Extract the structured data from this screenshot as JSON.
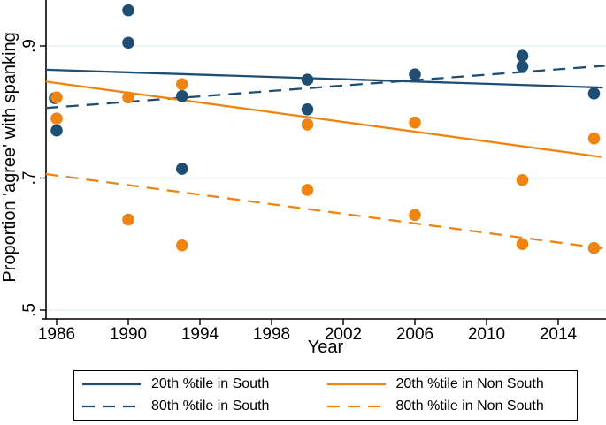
{
  "chart_data": {
    "type": "scatter",
    "title": "",
    "xlabel": "Year",
    "ylabel": "Proportion 'agree' with spanking",
    "x_ticks": [
      1986,
      1990,
      1994,
      1998,
      2002,
      2006,
      2010,
      2014
    ],
    "y_ticks": [
      0.5,
      0.7,
      0.9
    ],
    "y_tick_labels": [
      ".5",
      ".7",
      ".9"
    ],
    "x_range": [
      1985.2,
      2016.75
    ],
    "y_range": [
      0.487,
      0.97
    ],
    "grid": "horizontal-only",
    "legend_position": "bottom-box",
    "colors": {
      "south": "#1f4e74",
      "non_south": "#ee8512",
      "gridline": "#e7f0f2",
      "axis": "#000000"
    },
    "scatter_groups": [
      {
        "name": "South (navy dots)",
        "color_key": "south",
        "points": [
          [
            1985.9,
            0.821
          ],
          [
            1986,
            0.772
          ],
          [
            1990,
            0.954
          ],
          [
            1990,
            0.905
          ],
          [
            1993,
            0.824
          ],
          [
            1993,
            0.714
          ],
          [
            2000,
            0.849
          ],
          [
            2000,
            0.804
          ],
          [
            2006,
            0.857
          ],
          [
            2012,
            0.885
          ],
          [
            2012,
            0.869
          ],
          [
            2016,
            0.828
          ]
        ]
      },
      {
        "name": "Non South (orange dots)",
        "color_key": "non_south",
        "points": [
          [
            1986,
            0.822
          ],
          [
            1986,
            0.79
          ],
          [
            1990,
            0.822
          ],
          [
            1990,
            0.637
          ],
          [
            1993,
            0.842
          ],
          [
            1993,
            0.598
          ],
          [
            2000,
            0.781
          ],
          [
            2000,
            0.682
          ],
          [
            2006,
            0.784
          ],
          [
            2006,
            0.644
          ],
          [
            2012,
            0.697
          ],
          [
            2012,
            0.6
          ],
          [
            2016,
            0.76
          ],
          [
            2016,
            0.594
          ]
        ]
      }
    ],
    "fit_lines": [
      {
        "label": "20th %tile in South",
        "color_key": "south",
        "style": "solid",
        "x": [
          1985.4,
          2016.5
        ],
        "y": [
          0.864,
          0.837
        ]
      },
      {
        "label": "80th %tile in South",
        "color_key": "south",
        "style": "dashed",
        "x": [
          1985.4,
          2016.6
        ],
        "y": [
          0.806,
          0.87
        ]
      },
      {
        "label": "20th %tile in Non South",
        "color_key": "non_south",
        "style": "solid",
        "x": [
          1985.4,
          2016.4
        ],
        "y": [
          0.846,
          0.732
        ]
      },
      {
        "label": "80th %tile in Non South",
        "color_key": "non_south",
        "style": "dashed",
        "x": [
          1985.4,
          2016.6
        ],
        "y": [
          0.706,
          0.593
        ]
      }
    ],
    "legend": {
      "entries": [
        {
          "label": "20th %tile in South",
          "style": "solid",
          "color_key": "south"
        },
        {
          "label": "80th %tile in South",
          "style": "dashed",
          "color_key": "south"
        },
        {
          "label": "20th %tile in Non South",
          "style": "solid",
          "color_key": "non_south"
        },
        {
          "label": "80th %tile in Non South",
          "style": "dashed",
          "color_key": "non_south"
        }
      ]
    }
  }
}
